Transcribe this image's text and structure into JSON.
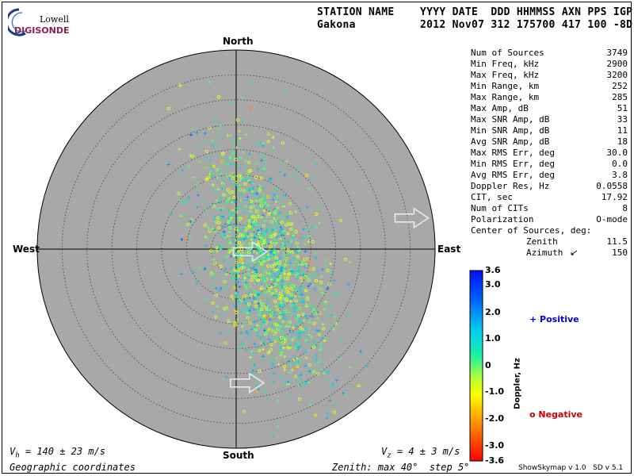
{
  "logo": {
    "line1": "Lowell",
    "line2": "DIGISONDE",
    "color": "#8a2050"
  },
  "header": {
    "row1": "STATION NAME    YYYY DATE  DDD HHMMSS AXN PPS IGP",
    "row2": "Gakona          2012 Nov07 312 175700 417 100 -8D"
  },
  "plot": {
    "north": "North",
    "south": "South",
    "east": "East",
    "west": "West",
    "disk_color": "#a8a8a8",
    "vh_prefix": "V",
    "vh_sub": "h",
    "vh_rest": " = 140 ± 23 m/s",
    "vz_prefix": "V",
    "vz_sub": "z",
    "vz_rest": " = 4 ± 3 m/s",
    "coords": "Geographic coordinates",
    "zenith_note": "Zenith: max 40°  step 5°"
  },
  "stats": [
    {
      "label": "Num of Sources",
      "value": "3749"
    },
    {
      "label": "Min Freq, kHz",
      "value": "2900"
    },
    {
      "label": "Max Freq, kHz",
      "value": "3200"
    },
    {
      "label": "Min Range, km",
      "value": "252"
    },
    {
      "label": "Max Range, km",
      "value": "285"
    },
    {
      "label": "Max Amp, dB",
      "value": "51"
    },
    {
      "label": "Max SNR Amp, dB",
      "value": "33"
    },
    {
      "label": "Min SNR Amp, dB",
      "value": "11"
    },
    {
      "label": "Avg SNR Amp, dB",
      "value": "18"
    },
    {
      "label": "Max RMS Err, deg",
      "value": "30.0"
    },
    {
      "label": "Min RMS Err, deg",
      "value": "0.0"
    },
    {
      "label": "Avg RMS Err, deg",
      "value": "3.8"
    },
    {
      "label": "Doppler Res, Hz",
      "value": "0.0558"
    },
    {
      "label": "CIT, sec",
      "value": "17.92"
    },
    {
      "label": "Num of CITs",
      "value": "8"
    },
    {
      "label": "Polarization",
      "value": "O-mode"
    }
  ],
  "center": {
    "title": "Center of Sources, deg:",
    "zenith_label": "Zenith",
    "zenith_value": "11.5",
    "azimuth_label": "Azimuth",
    "azimuth_value": "150"
  },
  "colorbar": {
    "title": "Doppler, Hz",
    "ticks": [
      "3.6",
      "3.0",
      "2.0",
      "1.0",
      "0",
      "-1.0",
      "-2.0",
      "-3.0",
      "-3.6"
    ],
    "positive_label": "+ Positive",
    "positive_color": "#0000cc",
    "negative_label": "o Negative",
    "negative_color": "#cc0000"
  },
  "footer": {
    "version": "ShowSkymap v 1.0   SD v 5.1"
  },
  "chart_data": {
    "type": "scatter",
    "title": "",
    "projection": "polar-skymap",
    "zenith_max_deg": 40,
    "zenith_step_deg": 5,
    "num_sources": 3749,
    "center_zenith_deg": 11.5,
    "center_azimuth_deg": 150,
    "doppler_range_hz": [
      -3.6,
      3.6
    ],
    "velocity_arrows": [
      {
        "zenith_deg": 36,
        "azimuth_deg": 80
      },
      {
        "zenith_deg": 3,
        "azimuth_deg": 100
      },
      {
        "zenith_deg": 27,
        "azimuth_deg": 175
      }
    ]
  }
}
